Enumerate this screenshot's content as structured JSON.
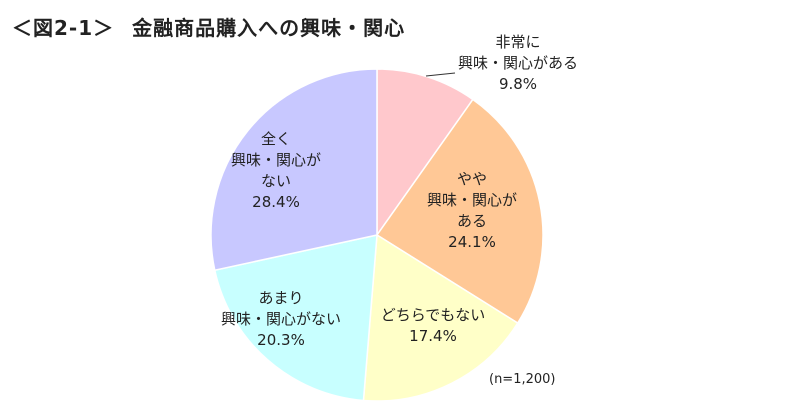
{
  "figure": {
    "number": "＜図2-1＞",
    "title": "金融商品購入への興味・関心",
    "note": "(n=1,200)"
  },
  "chart_data": {
    "type": "pie",
    "title": "金融商品購入への興味・関心",
    "slices": [
      {
        "lines": [
          "非常に",
          "興味・関心がある"
        ],
        "value_label": "9.8%",
        "value": 9.8,
        "color": "#ffc8cc"
      },
      {
        "lines": [
          "やや",
          "興味・関心が",
          "ある"
        ],
        "value_label": "24.1%",
        "value": 24.1,
        "color": "#ffc896"
      },
      {
        "lines": [
          "どちらでもない"
        ],
        "value_label": "17.4%",
        "value": 17.4,
        "color": "#ffffc8"
      },
      {
        "lines": [
          "あまり",
          "興味・関心がない"
        ],
        "value_label": "20.3%",
        "value": 20.3,
        "color": "#c8ffff"
      },
      {
        "lines": [
          "全く",
          "興味・関心が",
          "ない"
        ],
        "value_label": "28.4%",
        "value": 28.4,
        "color": "#c8c8ff"
      }
    ],
    "start": "12 o'clock",
    "direction": "clockwise"
  }
}
